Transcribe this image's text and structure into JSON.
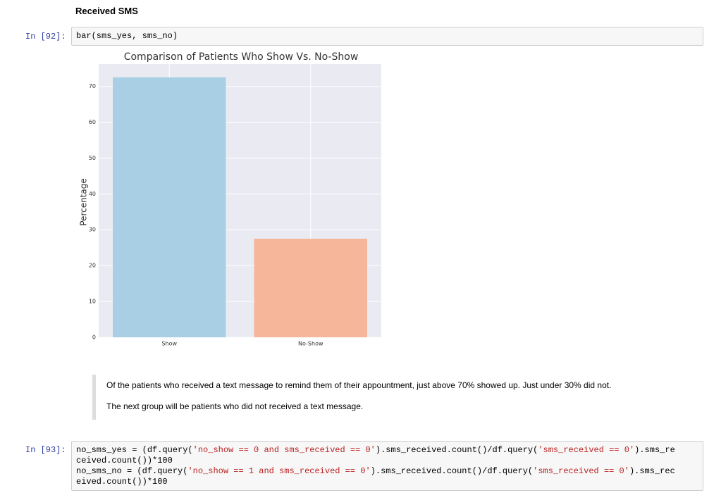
{
  "heading": "Received SMS",
  "cells": [
    {
      "prompt": "In [92]:",
      "lines": [
        [
          "bar(sms_yes, sms_no)"
        ]
      ]
    },
    {
      "paragraphs": [
        "Of the patients who received a text message to remind them of their appountment, just above 70% showed up. Just under 30% did not.",
        "The next group will be patients who did not received a text message."
      ]
    },
    {
      "prompt": "In [93]:",
      "lines": [
        [
          "no_sms_yes = (df.query(",
          "'no_show == 0 and sms_received == 0'",
          ").sms_received.count()/df.query(",
          "'sms_received == 0'",
          ").sms_re"
        ],
        [
          "ceived.count())*100"
        ],
        [
          "no_sms_no = (df.query(",
          "'no_show == 1 and sms_received == 0'",
          ").sms_received.count()/df.query(",
          "'sms_received == 0'",
          ").sms_rec"
        ],
        [
          "eived.count())*100"
        ]
      ]
    }
  ],
  "chart_data": {
    "type": "bar",
    "title": "Comparison of Patients Who Show Vs. No-Show",
    "y_label": "Percentage",
    "categories": [
      "Show",
      "No-Show"
    ],
    "values": [
      72.5,
      27.5
    ],
    "colors": [
      "#a9cfe4",
      "#f6b69a"
    ],
    "ylim": [
      0,
      76.2
    ],
    "yticks": [
      0,
      10,
      20,
      30,
      40,
      50,
      60,
      70
    ],
    "grid": true
  }
}
